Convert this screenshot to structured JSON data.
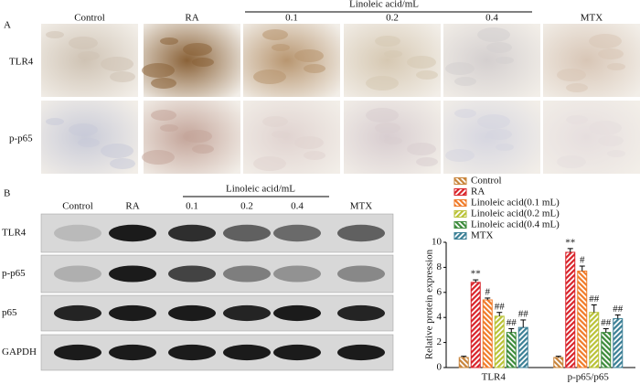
{
  "panel_a": {
    "label": "A",
    "group_label": "Linoleic acid/mL",
    "columns": [
      "Control",
      "RA",
      "0.1",
      "0.2",
      "0.4",
      "MTX"
    ],
    "rows": [
      "TLR4",
      "p-p65"
    ]
  },
  "panel_b": {
    "label": "B",
    "group_label": "Linoleic acid/mL",
    "lanes": [
      "Control",
      "RA",
      "0.1",
      "0.2",
      "0.4",
      "MTX"
    ],
    "rows": [
      "TLR4",
      "p-p65",
      "p65",
      "GAPDH"
    ]
  },
  "chart_data": {
    "type": "bar",
    "y_label": "Relative protein expression",
    "categories": [
      "TLR4",
      "p-p65/p65"
    ],
    "series": [
      {
        "name": "Control",
        "color": "#c8843a",
        "values": [
          0.8,
          0.8
        ],
        "errors": [
          0.1,
          0.1
        ],
        "annotations": [
          null,
          null
        ]
      },
      {
        "name": "RA",
        "color": "#d9232a",
        "values": [
          6.8,
          9.2
        ],
        "errors": [
          0.2,
          0.3
        ],
        "annotations": [
          "**",
          "**"
        ]
      },
      {
        "name": "Linoleic acid(0.1 mL)",
        "color": "#f07a28",
        "values": [
          5.4,
          7.7
        ],
        "errors": [
          0.15,
          0.4
        ],
        "annotations": [
          "#",
          "#"
        ]
      },
      {
        "name": "Linoleic acid(0.2 mL)",
        "color": "#b9c236",
        "values": [
          4.1,
          4.4
        ],
        "errors": [
          0.3,
          0.6
        ],
        "annotations": [
          "##",
          "##"
        ]
      },
      {
        "name": "Linoleic acid(0.4 mL)",
        "color": "#3b8a3a",
        "values": [
          2.8,
          2.8
        ],
        "errors": [
          0.3,
          0.3
        ],
        "annotations": [
          "##",
          "##"
        ]
      },
      {
        "name": "MTX",
        "color": "#3a7f95",
        "values": [
          3.2,
          3.9
        ],
        "errors": [
          0.6,
          0.3
        ],
        "annotations": [
          "##",
          "##"
        ]
      }
    ],
    "ylim": [
      0,
      10
    ],
    "yticks": [
      0,
      2,
      4,
      6,
      8,
      10
    ],
    "legend": "top-left"
  }
}
